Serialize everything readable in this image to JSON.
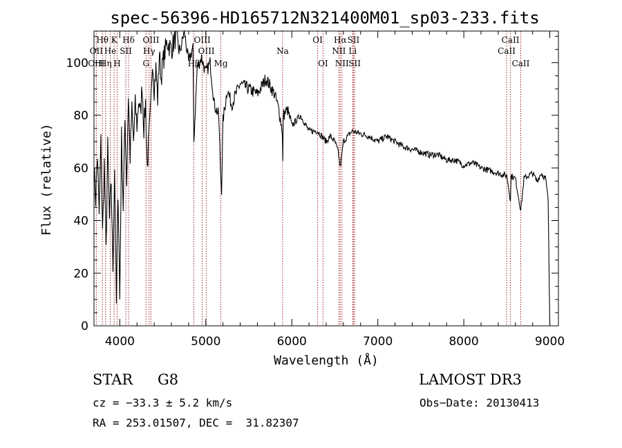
{
  "chart_data": {
    "type": "line",
    "title": "spec-56396-HD165712N321400M01_sp03-233.fits",
    "xlabel": "Wavelength (Å)",
    "ylabel": "Flux (relative)",
    "xlim": [
      3700,
      9100
    ],
    "ylim": [
      0,
      112
    ],
    "xticks": [
      4000,
      5000,
      6000,
      7000,
      8000,
      9000
    ],
    "yticks": [
      0,
      20,
      40,
      60,
      80,
      100
    ],
    "grid": false,
    "series": [
      {
        "x": [
          3700,
          3720,
          3740,
          3760,
          3780,
          3800,
          3820,
          3840,
          3860,
          3880,
          3900,
          3920,
          3940,
          3960,
          3980,
          4000,
          4020,
          4040,
          4060,
          4080,
          4100,
          4120,
          4140,
          4160,
          4180,
          4200,
          4220,
          4240,
          4260,
          4280,
          4300,
          4320,
          4340,
          4360,
          4380,
          4400,
          4420,
          4440,
          4460,
          4480,
          4500,
          4550,
          4600,
          4650,
          4700,
          4750,
          4800,
          4850,
          4861,
          4900,
          4950,
          5000,
          5050,
          5100,
          5150,
          5170,
          5183,
          5200,
          5250,
          5300,
          5400,
          5500,
          5600,
          5700,
          5800,
          5850,
          5890,
          5895,
          5900,
          5950,
          6000,
          6100,
          6200,
          6300,
          6400,
          6450,
          6500,
          6540,
          6563,
          6600,
          6650,
          6700,
          6800,
          6900,
          7000,
          7100,
          7200,
          7300,
          7400,
          7500,
          7600,
          7700,
          7800,
          7900,
          8000,
          8100,
          8200,
          8300,
          8400,
          8500,
          8542,
          8550,
          8600,
          8662,
          8700,
          8800,
          8850,
          8900,
          8950,
          8980,
          9000
        ],
        "y": [
          60,
          48,
          65,
          42,
          70,
          35,
          62,
          28,
          68,
          40,
          55,
          22,
          60,
          8,
          52,
          10,
          72,
          45,
          78,
          55,
          88,
          64,
          82,
          70,
          84,
          76,
          86,
          80,
          92,
          75,
          85,
          60,
          72,
          82,
          102,
          90,
          98,
          86,
          104,
          94,
          100,
          108,
          105,
          110,
          104,
          112,
          100,
          106,
          70,
          98,
          102,
          96,
          100,
          84,
          80,
          60,
          52,
          78,
          90,
          84,
          92,
          90,
          88,
          94,
          88,
          82,
          74,
          62,
          80,
          82,
          76,
          80,
          74,
          74,
          70,
          72,
          70,
          66,
          60,
          70,
          72,
          74,
          73,
          72,
          70,
          72,
          70,
          68,
          67,
          66,
          65,
          65,
          63,
          63,
          61,
          62,
          60,
          59,
          58,
          57,
          48,
          57,
          56,
          44,
          56,
          58,
          55,
          58,
          56,
          48,
          0
        ]
      }
    ],
    "spectral_lines": [
      {
        "label": "Hθ",
        "wavelength": 3798,
        "row": 1
      },
      {
        "label": "OII",
        "wavelength": 3727,
        "row": 2
      },
      {
        "label": "OIII",
        "wavelength": 3727,
        "row": 3
      },
      {
        "label": "Hη",
        "wavelength": 3835,
        "row": 3
      },
      {
        "label": "He",
        "wavelength": 3889,
        "row": 2
      },
      {
        "label": "K",
        "wavelength": 3934,
        "row": 1
      },
      {
        "label": "SII",
        "wavelength": 4070,
        "row": 2
      },
      {
        "label": "Hδ",
        "wavelength": 4102,
        "row": 1
      },
      {
        "label": "H",
        "wavelength": 3969,
        "row": 3
      },
      {
        "label": "OIII",
        "wavelength": 4363,
        "row": 1
      },
      {
        "label": "Hγ",
        "wavelength": 4341,
        "row": 2
      },
      {
        "label": "G",
        "wavelength": 4305,
        "row": 3
      },
      {
        "label": "Hβ",
        "wavelength": 4861,
        "row": 3
      },
      {
        "label": "OIII",
        "wavelength": 4959,
        "row": 1
      },
      {
        "label": "OIII",
        "wavelength": 5007,
        "row": 2
      },
      {
        "label": "Mg",
        "wavelength": 5175,
        "row": 3
      },
      {
        "label": "Na",
        "wavelength": 5893,
        "row": 2
      },
      {
        "label": "OI",
        "wavelength": 6300,
        "row": 1
      },
      {
        "label": "OI",
        "wavelength": 6363,
        "row": 3
      },
      {
        "label": "Hα",
        "wavelength": 6563,
        "row": 1
      },
      {
        "label": "NII",
        "wavelength": 6548,
        "row": 2
      },
      {
        "label": "NII",
        "wavelength": 6583,
        "row": 3
      },
      {
        "label": "SII",
        "wavelength": 6717,
        "row": 1
      },
      {
        "label": "Li",
        "wavelength": 6708,
        "row": 2
      },
      {
        "label": "SII",
        "wavelength": 6731,
        "row": 3
      },
      {
        "label": "CaII",
        "wavelength": 8542,
        "row": 1
      },
      {
        "label": "CaII",
        "wavelength": 8498,
        "row": 2
      },
      {
        "label": "CaII",
        "wavelength": 8662,
        "row": 3
      }
    ],
    "line_color": "#000000",
    "marker_color": "#a11d1d"
  },
  "info": {
    "object_class": "STAR",
    "subclass": "G8",
    "survey": "LAMOST DR3",
    "cz": "cz = −33.3 ± 5.2 km/s",
    "obs_date": "Obs−Date: 20130413",
    "coords": "RA = 253.01507, DEC =  31.82307"
  }
}
